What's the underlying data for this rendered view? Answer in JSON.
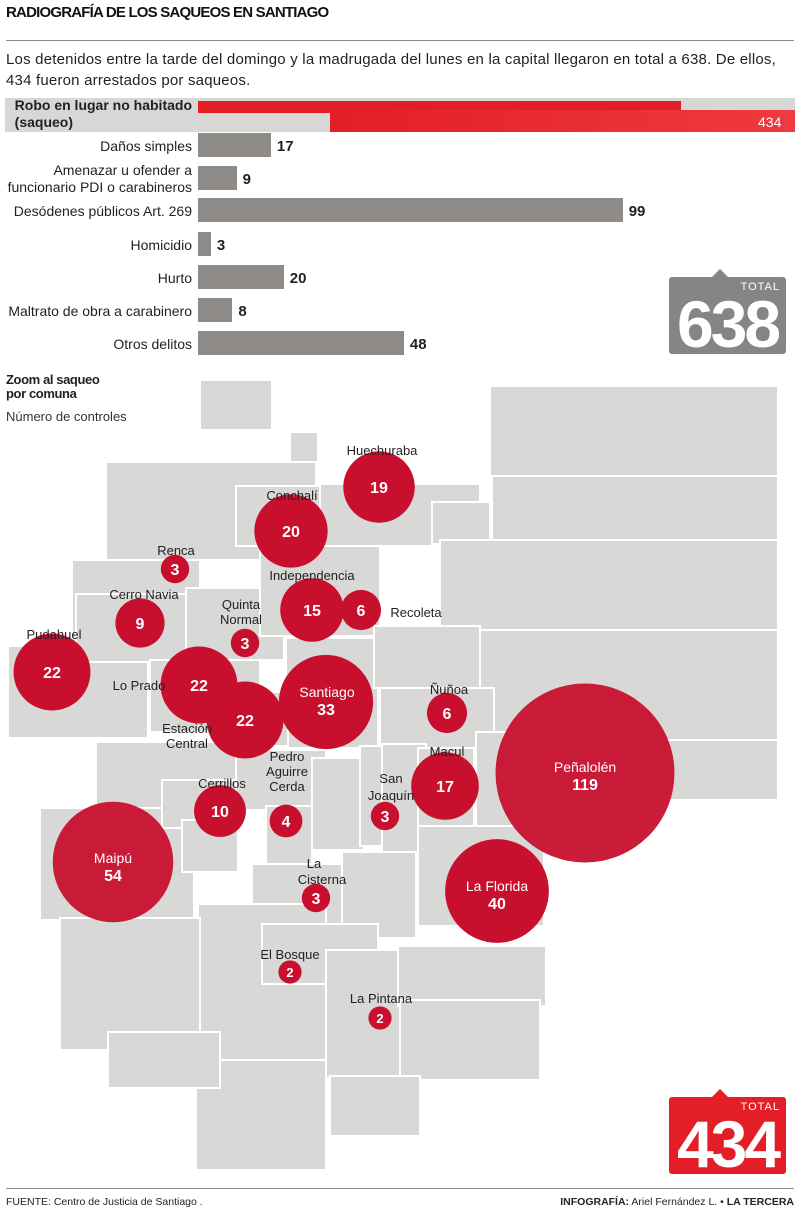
{
  "title": "RADIOGRAFÍA DE LOS SAQUEOS EN SANTIAGO",
  "intro": "Los detenidos entre la tarde del domingo y la madrugada del lunes en la capital llegaron en total a 638. De ellos, 434 fueron arrestados por saqueos.",
  "colors": {
    "bar": "#8f8b88",
    "highlight": "#e31e26",
    "map": "#d8d8d6",
    "bubble": "#c8102e"
  },
  "chart_data": [
    {
      "type": "bar",
      "orientation": "horizontal",
      "categories": [
        "Robo en lugar no habitado (saqueo)",
        "Daños simples",
        "Amenazar u ofender a funcionario PDI o carabineros",
        "Desódenes públicos Art. 269",
        "Homicidio",
        "Hurto",
        "Maltrato de obra a carabinero",
        "Otros delitos"
      ],
      "label_lines": [
        [
          "Robo en lugar no habitado",
          "(saqueo)"
        ],
        [
          "Daños simples"
        ],
        [
          "Amenazar u ofender a",
          "funcionario PDI o carabineros"
        ],
        [
          "Desódenes públicos Art. 269"
        ],
        [
          "Homicidio"
        ],
        [
          "Hurto"
        ],
        [
          "Maltrato de obra a carabinero"
        ],
        [
          "Otros delitos"
        ]
      ],
      "values": [
        434,
        17,
        9,
        99,
        3,
        20,
        8,
        48
      ],
      "highlight_index": 0,
      "total": {
        "label": "TOTAL",
        "value": "638"
      }
    },
    {
      "type": "bubble-map",
      "title": "Zoom al saqueo por comuna",
      "title_lines": [
        "Zoom al saqueo",
        "por comuna"
      ],
      "unit": "Número de controles",
      "points": [
        {
          "name": "Huechuraba",
          "value": 19
        },
        {
          "name": "Conchalí",
          "value": 20
        },
        {
          "name": "Renca",
          "value": 3
        },
        {
          "name": "Independencia",
          "value": 15
        },
        {
          "name": "Recoleta",
          "value": 6
        },
        {
          "name": "Cerro Navia",
          "value": 9
        },
        {
          "name": "Quinta Normal",
          "value": 3
        },
        {
          "name": "Pudahuel",
          "value": 22
        },
        {
          "name": "Lo Prado",
          "value": 22
        },
        {
          "name": "Estación Central",
          "value": 22
        },
        {
          "name": "Santiago",
          "value": 33
        },
        {
          "name": "Ñuñoa",
          "value": 6
        },
        {
          "name": "Macul",
          "value": 17
        },
        {
          "name": "Peñalolén",
          "value": 119
        },
        {
          "name": "Pedro Aguirre Cerda",
          "value": 4
        },
        {
          "name": "San Joaquín",
          "value": 3
        },
        {
          "name": "Cerrillos",
          "value": 10
        },
        {
          "name": "Maipú",
          "value": 54
        },
        {
          "name": "La Cisterna",
          "value": 3
        },
        {
          "name": "La Florida",
          "value": 40
        },
        {
          "name": "El Bosque",
          "value": 2
        },
        {
          "name": "La Pintana",
          "value": 2
        }
      ],
      "total": {
        "label": "TOTAL",
        "value": "434"
      }
    }
  ],
  "footer": {
    "source_label": "FUENTE:",
    "source": "Centro de Justicia de Santiago .",
    "credit_label": "INFOGRAFÍA:",
    "credit": "Ariel Fernández L. •",
    "brand": "LA TERCERA"
  }
}
